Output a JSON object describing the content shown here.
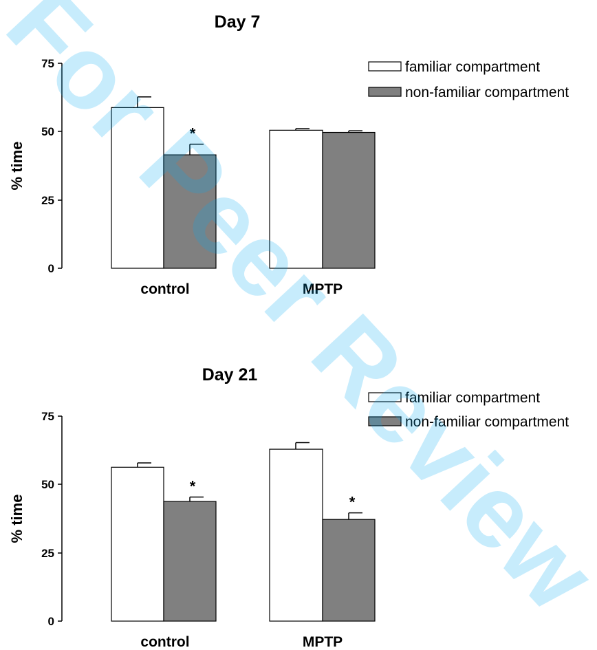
{
  "watermark": "For Peer Review",
  "colors": {
    "familiar": "#ffffff",
    "non_familiar": "#808080",
    "watermark": "#00a8f0"
  },
  "chart_data": [
    {
      "type": "bar",
      "title": "Day 7",
      "ylabel": "% time",
      "ylim": [
        0,
        75
      ],
      "yticks": [
        "0",
        "25",
        "50",
        "75"
      ],
      "categories": [
        "control",
        "MPTP"
      ],
      "legend": [
        "familiar compartment",
        "non-familiar compartment"
      ],
      "legend_placement": "top-right",
      "series": [
        {
          "name": "familiar compartment",
          "values": [
            58.8,
            50.5
          ],
          "errors": [
            3.9,
            0.6
          ],
          "significance": [
            "",
            ""
          ]
        },
        {
          "name": "non-familiar compartment",
          "values": [
            41.5,
            49.7
          ],
          "errors": [
            3.9,
            0.6
          ],
          "significance": [
            "*",
            ""
          ]
        }
      ]
    },
    {
      "type": "bar",
      "title": "Day 21",
      "ylabel": "% time",
      "ylim": [
        0,
        75
      ],
      "yticks": [
        "0",
        "25",
        "50",
        "75"
      ],
      "categories": [
        "control",
        "MPTP"
      ],
      "legend": [
        "familiar compartment",
        "non-familiar compartment"
      ],
      "legend_placement": "top-right",
      "series": [
        {
          "name": "familiar compartment",
          "values": [
            56.3,
            62.9
          ],
          "errors": [
            1.6,
            2.4
          ],
          "significance": [
            "",
            ""
          ]
        },
        {
          "name": "non-familiar compartment",
          "values": [
            43.8,
            37.2
          ],
          "errors": [
            1.6,
            2.4
          ],
          "significance": [
            "*",
            "*"
          ]
        }
      ]
    }
  ]
}
